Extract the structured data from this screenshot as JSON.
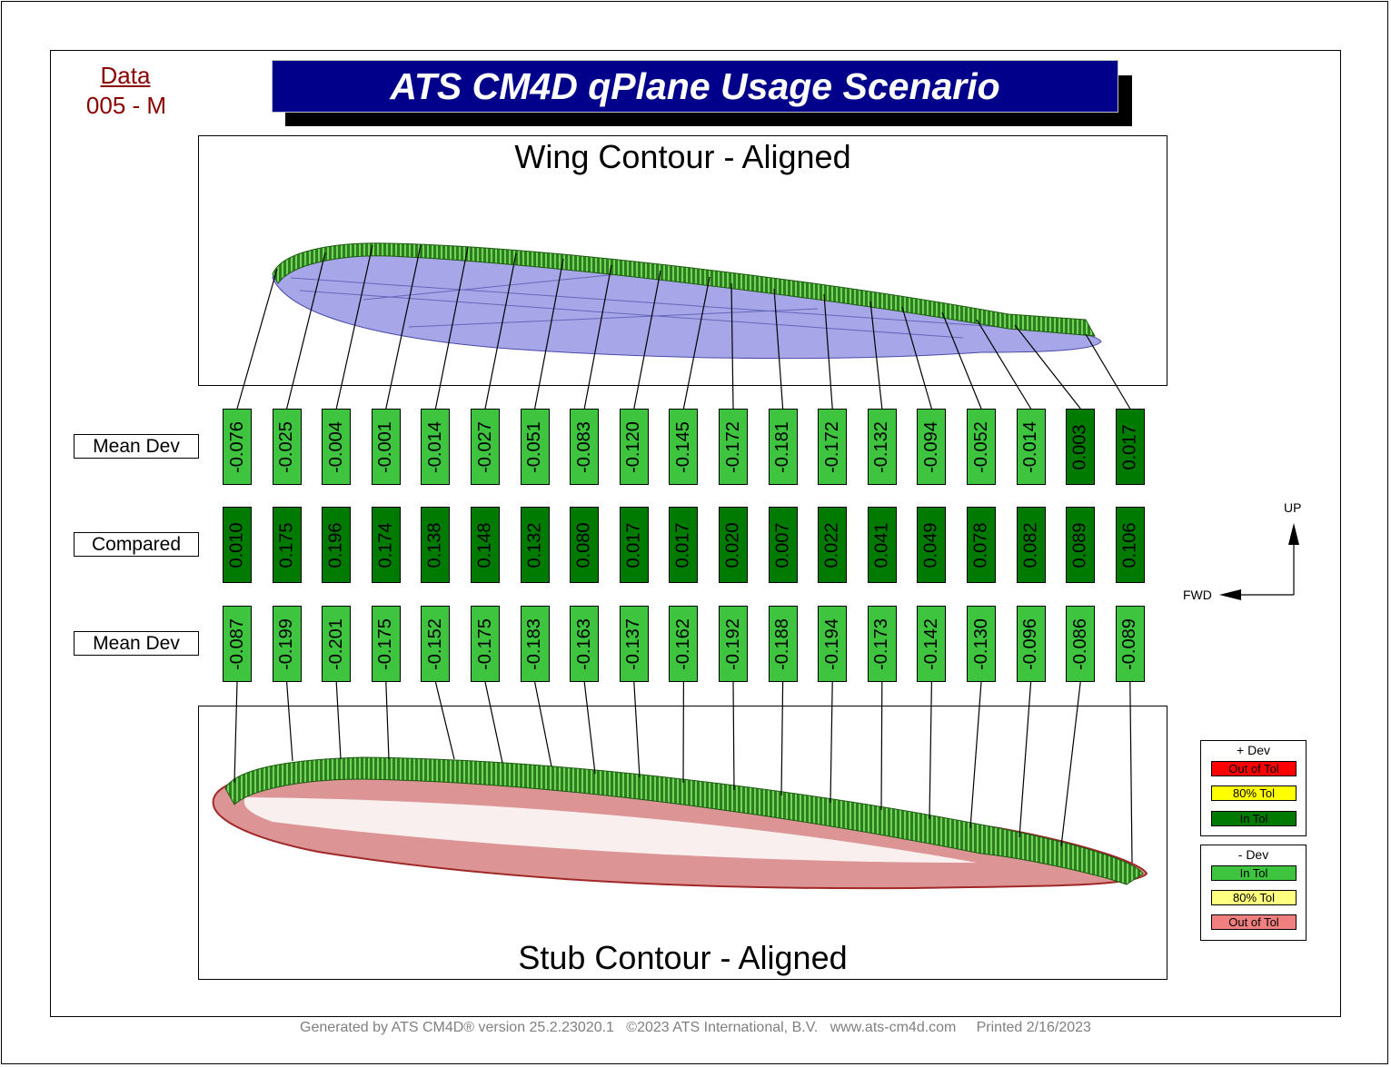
{
  "header": {
    "data_label": "Data",
    "data_id": "005 - M",
    "title": "ATS CM4D  qPlane Usage Scenario"
  },
  "panels": {
    "wing_title": "Wing Contour - Aligned",
    "stub_title": "Stub Contour - Aligned"
  },
  "rows": [
    {
      "label": "Mean Dev",
      "values": [
        "-0.076",
        "-0.025",
        "-0.004",
        "-0.001",
        "-0.014",
        "-0.027",
        "-0.051",
        "-0.083",
        "-0.120",
        "-0.145",
        "-0.172",
        "-0.181",
        "-0.172",
        "-0.132",
        "-0.094",
        "-0.052",
        "-0.014",
        "0.003",
        "0.017"
      ],
      "status": [
        "l",
        "l",
        "l",
        "l",
        "l",
        "l",
        "l",
        "l",
        "l",
        "l",
        "l",
        "l",
        "l",
        "l",
        "l",
        "l",
        "l",
        "d",
        "d"
      ]
    },
    {
      "label": "Compared",
      "values": [
        "0.010",
        "0.175",
        "0.196",
        "0.174",
        "0.138",
        "0.148",
        "0.132",
        "0.080",
        "0.017",
        "0.017",
        "0.020",
        "0.007",
        "0.022",
        "0.041",
        "0.049",
        "0.078",
        "0.082",
        "0.089",
        "0.106"
      ],
      "status": [
        "d",
        "d",
        "d",
        "d",
        "d",
        "d",
        "d",
        "d",
        "d",
        "d",
        "d",
        "d",
        "d",
        "d",
        "d",
        "d",
        "d",
        "d",
        "d"
      ]
    },
    {
      "label": "Mean Dev",
      "values": [
        "-0.087",
        "-0.199",
        "-0.201",
        "-0.175",
        "-0.152",
        "-0.175",
        "-0.183",
        "-0.163",
        "-0.137",
        "-0.162",
        "-0.192",
        "-0.188",
        "-0.194",
        "-0.173",
        "-0.142",
        "-0.130",
        "-0.096",
        "-0.086",
        "-0.089"
      ],
      "status": [
        "l",
        "l",
        "l",
        "l",
        "l",
        "l",
        "l",
        "l",
        "l",
        "l",
        "l",
        "l",
        "l",
        "l",
        "l",
        "l",
        "l",
        "l",
        "l"
      ]
    }
  ],
  "axes": {
    "up_label": "UP",
    "fwd_label": "FWD"
  },
  "legend": {
    "plus": {
      "title": "+ Dev",
      "items": [
        {
          "label": "Out of Tol",
          "color": "#ff0000"
        },
        {
          "label": "80% Tol",
          "color": "#ffff00"
        },
        {
          "label": "In Tol",
          "color": "#007a00"
        }
      ]
    },
    "minus": {
      "title": "- Dev",
      "items": [
        {
          "label": "In Tol",
          "color": "#3ec43e"
        },
        {
          "label": "80% Tol",
          "color": "#ffff80"
        },
        {
          "label": "Out of Tol",
          "color": "#f08080"
        }
      ]
    }
  },
  "colors": {
    "in_tol_dark": "#007a00",
    "in_tol_light": "#3ec43e",
    "title_bg": "#00008b",
    "data_text": "#8b0000"
  },
  "footer": {
    "generated": "Generated by ATS CM4D® version 25.2.23020.1",
    "copyright": "©2023 ATS International, B.V.",
    "website": "www.ats-cm4d.com",
    "printed": "Printed 2/16/2023"
  }
}
